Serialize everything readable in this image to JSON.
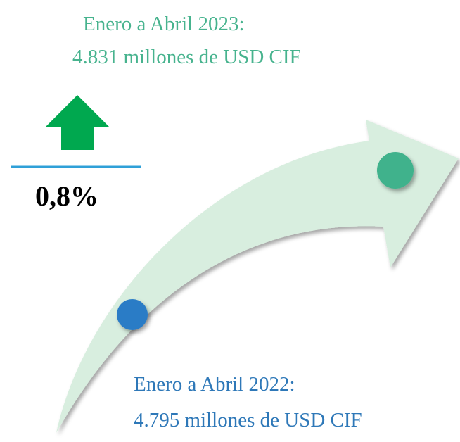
{
  "top_label": {
    "period": "Enero a Abril 2023:",
    "value": "4.831 millones de USD CIF"
  },
  "change": "0,8%",
  "bottom_label": {
    "period": "Enero a Abril 2022:",
    "value": "4.795 millones de USD CIF"
  }
}
